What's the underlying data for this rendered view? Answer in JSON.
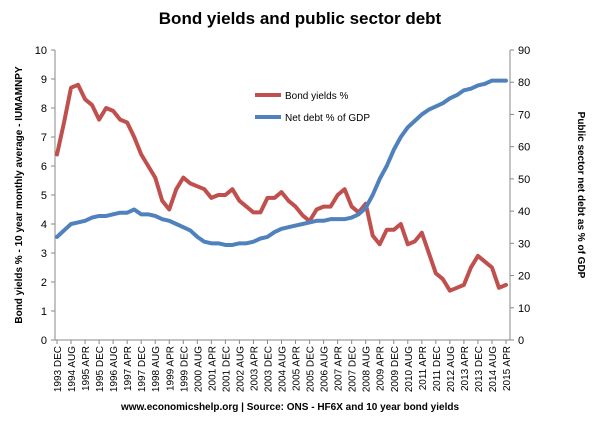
{
  "chart_data": {
    "type": "line",
    "title": "Bond yields and public sector debt",
    "ylabel": "Bond yields % - 10 year monthly average - IUMAMNPY",
    "y2label": "Public sector net debt as % of GDP",
    "source": "www.economicshelp.org | Source: ONS - HF6X and 10 year bond yields",
    "categories": [
      "1993 DEC",
      null,
      "1994 AUG",
      null,
      "1995 APR",
      null,
      "1995 DEC",
      null,
      "1996 AUG",
      null,
      "1997 APR",
      null,
      "1997 DEC",
      null,
      "1998 AUG",
      null,
      "1999 APR",
      null,
      "1999 DEC",
      null,
      "2000 AUG",
      null,
      "2001 APR",
      null,
      "2001 DEC",
      null,
      "2002 AUG",
      null,
      "2003 APR",
      null,
      "2003 DEC",
      null,
      "2004 AUG",
      null,
      "2005 APR",
      null,
      "2005 DEC",
      null,
      "2006 AUG",
      null,
      "2007 APR",
      null,
      "2007 DEC",
      null,
      "2008 AUG",
      null,
      "2009 APR",
      null,
      "2009 DEC",
      null,
      "2010 AUG",
      null,
      "2011 APR",
      null,
      "2011 DEC",
      null,
      "2012 AUG",
      null,
      "2013 APR",
      null,
      "2013 DEC",
      null,
      "2014 AUG",
      null,
      "2015 APR"
    ],
    "series": [
      {
        "name": "Bond yields %",
        "color": "#c0504d",
        "axis": "y",
        "values": [
          6.4,
          7.5,
          8.7,
          8.8,
          8.3,
          8.1,
          7.6,
          8.0,
          7.9,
          7.6,
          7.5,
          7.0,
          6.4,
          6.0,
          5.6,
          4.8,
          4.5,
          5.2,
          5.6,
          5.4,
          5.3,
          5.2,
          4.9,
          5.0,
          5.0,
          5.2,
          4.8,
          4.6,
          4.4,
          4.4,
          4.9,
          4.9,
          5.1,
          4.8,
          4.6,
          4.3,
          4.1,
          4.5,
          4.6,
          4.6,
          5.0,
          5.2,
          4.6,
          4.4,
          4.7,
          3.6,
          3.3,
          3.8,
          3.8,
          4.0,
          3.3,
          3.4,
          3.7,
          3.0,
          2.3,
          2.1,
          1.7,
          1.8,
          1.9,
          2.5,
          2.9,
          2.7,
          2.5,
          1.8,
          1.9
        ]
      },
      {
        "name": "Net debt % of GDP",
        "color": "#4f81bd",
        "axis": "y2",
        "values": [
          32,
          34,
          36,
          36.5,
          37,
          38,
          38.5,
          38.5,
          39,
          39.5,
          39.5,
          40.5,
          39,
          39,
          38.5,
          37.5,
          37,
          36,
          35,
          34,
          32,
          30.5,
          30,
          30,
          29.5,
          29.5,
          30,
          30,
          30.5,
          31.5,
          32,
          33.5,
          34.5,
          35,
          35.5,
          36,
          36.5,
          37,
          37,
          37.5,
          37.5,
          37.5,
          38,
          39,
          41,
          45,
          50,
          54,
          59,
          63,
          66,
          68,
          70,
          71.5,
          72.5,
          73.5,
          75,
          76,
          77.5,
          78,
          79,
          79.5,
          80.5,
          80.5,
          80.5
        ]
      }
    ],
    "ylim": [
      0,
      10
    ],
    "yticks": [
      0,
      1,
      2,
      3,
      4,
      5,
      6,
      7,
      8,
      9,
      10
    ],
    "y2lim": [
      0,
      90
    ],
    "y2ticks": [
      0,
      10,
      20,
      30,
      40,
      50,
      60,
      70,
      80,
      90
    ],
    "grid": false,
    "legend": "upper center"
  }
}
